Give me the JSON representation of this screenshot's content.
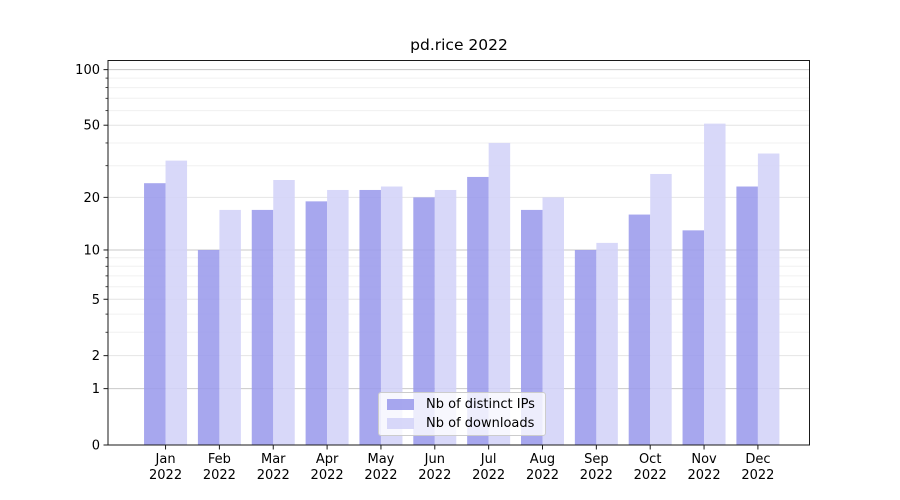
{
  "title": "pd.rice 2022",
  "legend": {
    "items": [
      {
        "label": "Nb of distinct IPs",
        "color": "#9b9bec"
      },
      {
        "label": "Nb of downloads",
        "color": "#d3d3f8"
      }
    ]
  },
  "chart_data": {
    "type": "bar",
    "title": "pd.rice 2022",
    "categories": [
      "Jan 2022",
      "Feb 2022",
      "Mar 2022",
      "Apr 2022",
      "May 2022",
      "Jun 2022",
      "Jul 2022",
      "Aug 2022",
      "Sep 2022",
      "Oct 2022",
      "Nov 2022",
      "Dec 2022"
    ],
    "series": [
      {
        "name": "Nb of distinct IPs",
        "color": "#9b9bec",
        "values": [
          24,
          10,
          17,
          19,
          22,
          20,
          26,
          17,
          10,
          16,
          13,
          23
        ]
      },
      {
        "name": "Nb of downloads",
        "color": "#d3d3f8",
        "values": [
          32,
          17,
          25,
          22,
          23,
          22,
          40,
          20,
          11,
          27,
          51,
          35
        ]
      }
    ],
    "xlabel": "",
    "ylabel": "",
    "y_scale": "log1p",
    "ylim": [
      0,
      112
    ],
    "y_ticks": [
      0,
      1,
      2,
      5,
      10,
      20,
      50,
      100
    ],
    "y_minor_ticks": [
      3,
      4,
      6,
      7,
      8,
      9,
      30,
      40,
      60,
      70,
      80,
      90
    ],
    "grid": true,
    "grid_colors": {
      "major": "#c9c9c9",
      "mid": "#e4e4e4",
      "minor": "#f0f0f0"
    },
    "axis_color": "#1a1a1a",
    "legend_position": "lower center"
  }
}
